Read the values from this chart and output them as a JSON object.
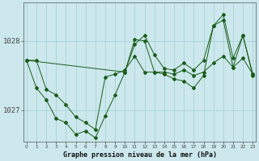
{
  "title": "Graphe pression niveau de la mer (hPa)",
  "bg_color": "#cce8ec",
  "grid_color": "#9ecfd6",
  "line_color": "#1a5c1a",
  "x_labels": [
    "0",
    "1",
    "2",
    "3",
    "4",
    "5",
    "6",
    "7",
    "8",
    "9",
    "10",
    "11",
    "12",
    "13",
    "14",
    "15",
    "16",
    "17",
    "18",
    "19",
    "20",
    "21",
    "22",
    "23"
  ],
  "y_ticks": [
    1027,
    1028
  ],
  "ylim": [
    1026.55,
    1028.55
  ],
  "xlim": [
    -0.3,
    23.3
  ],
  "series_a_x": [
    0,
    1,
    2,
    3,
    4,
    5,
    6,
    7,
    8,
    9,
    10,
    11,
    12,
    13,
    14,
    15,
    16,
    17,
    18,
    19,
    20,
    21,
    22,
    23
  ],
  "series_a_y": [
    1027.72,
    1027.32,
    1027.15,
    1026.88,
    1026.82,
    1026.65,
    1026.7,
    1026.6,
    1026.92,
    1027.22,
    1027.55,
    1028.02,
    1028.0,
    1027.55,
    1027.52,
    1027.45,
    1027.42,
    1027.32,
    1027.5,
    1028.22,
    1028.3,
    1027.62,
    1028.08,
    1027.5
  ],
  "series_b_x": [
    0,
    1,
    2,
    3,
    4,
    5,
    6,
    7,
    8,
    9,
    10,
    11,
    12,
    13,
    14,
    15,
    16,
    17,
    18,
    19,
    20,
    21,
    22,
    23
  ],
  "series_b_y": [
    1027.72,
    1027.72,
    1027.3,
    1027.22,
    1027.08,
    1026.9,
    1026.82,
    1026.72,
    1027.48,
    1027.52,
    1027.58,
    1027.78,
    1027.55,
    1027.55,
    1027.55,
    1027.52,
    1027.58,
    1027.5,
    1027.55,
    1027.68,
    1027.78,
    1027.62,
    1027.75,
    1027.52
  ],
  "series_c_x": [
    0,
    10,
    11,
    12,
    13,
    14,
    15,
    16,
    17,
    18,
    19,
    20,
    21,
    22,
    23
  ],
  "series_c_y": [
    1027.72,
    1027.55,
    1027.95,
    1028.08,
    1027.8,
    1027.6,
    1027.58,
    1027.68,
    1027.58,
    1027.72,
    1028.22,
    1028.38,
    1027.75,
    1028.08,
    1027.52
  ]
}
